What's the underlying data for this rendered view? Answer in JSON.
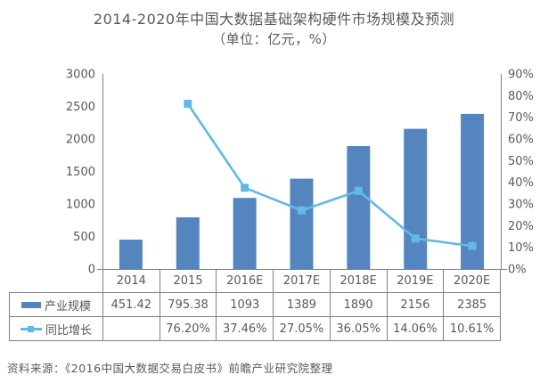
{
  "figure": {
    "source_note": "资料来源：《2016中国大数据交易白皮书》前瞻产业研究院整理"
  },
  "colors": {
    "bar_series": "#5585be",
    "line_series": "#62b9e6",
    "text": "#595959",
    "axis_line": "#808080",
    "table_border": "#808080",
    "background": "#ffffff"
  },
  "chart_data": {
    "type": "combo",
    "title": "2014-2020年中国大数据基础架构硬件市场规模及预测",
    "subtitle": "（单位：亿元，%）",
    "categories": [
      "2014",
      "2015",
      "2016E",
      "2017E",
      "2018E",
      "2019E",
      "2020E"
    ],
    "series": [
      {
        "name": "产业规模",
        "chart": "bar",
        "axis": "left",
        "color": "#5585be",
        "values": [
          451.42,
          795.38,
          1093,
          1389,
          1890,
          2156,
          2385
        ],
        "table_display": [
          "451.42",
          "795.38",
          "1093",
          "1389",
          "1890",
          "2156",
          "2385"
        ]
      },
      {
        "name": "同比增长",
        "chart": "line",
        "axis": "right",
        "color": "#62b9e6",
        "values": [
          null,
          76.2,
          37.46,
          27.05,
          36.05,
          14.06,
          10.61
        ],
        "table_display": [
          "",
          "76.20%",
          "37.46%",
          "27.05%",
          "36.05%",
          "14.06%",
          "10.61%"
        ]
      }
    ],
    "left_axis": {
      "min": 0,
      "max": 3000,
      "step": 500,
      "tick_labels": [
        "0",
        "500",
        "1000",
        "1500",
        "2000",
        "2500",
        "3000"
      ]
    },
    "right_axis": {
      "min": 0,
      "max": 90,
      "step": 10,
      "tick_labels": [
        "0%",
        "10%",
        "20%",
        "30%",
        "40%",
        "50%",
        "60%",
        "70%",
        "80%",
        "90%"
      ]
    },
    "legend_position": "table-left",
    "grid": false
  }
}
